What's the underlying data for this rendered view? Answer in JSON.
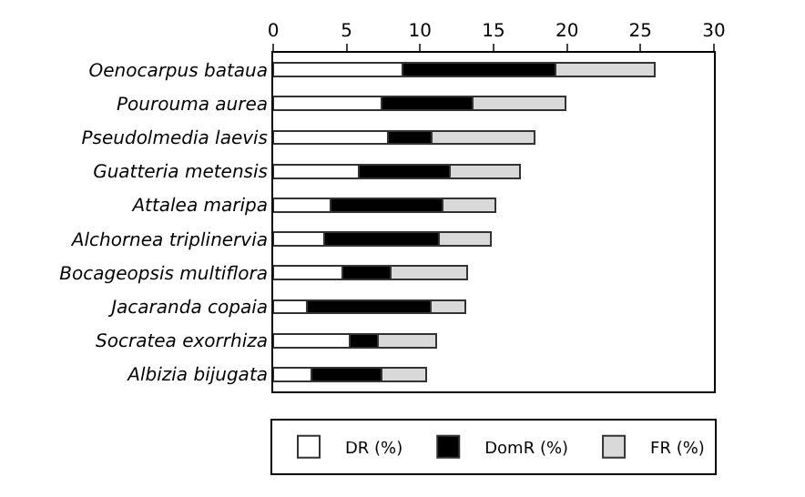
{
  "chart_data": {
    "type": "bar",
    "orientation": "horizontal",
    "stacked": true,
    "categories": [
      "Oenocarpus bataua",
      "Pourouma aurea",
      "Pseudolmedia laevis",
      "Guatteria metensis",
      "Attalea maripa",
      "Alchornea triplinervia",
      "Bocageopsis multiflora",
      "Jacaranda copaia",
      "Socratea exorrhiza",
      "Albizia bijugata"
    ],
    "series": [
      {
        "name": "DR (%)",
        "color": "#ffffff",
        "values": [
          8.8,
          7.4,
          7.8,
          5.8,
          3.9,
          3.5,
          4.7,
          2.3,
          5.2,
          2.6
        ]
      },
      {
        "name": "DomR (%)",
        "color": "#000000",
        "values": [
          10.4,
          6.2,
          3.0,
          6.2,
          7.6,
          7.8,
          3.3,
          8.4,
          1.9,
          4.8
        ]
      },
      {
        "name": "FR (%)",
        "color": "#d9d9d9",
        "values": [
          6.8,
          6.3,
          7.0,
          4.8,
          3.6,
          3.5,
          5.2,
          2.4,
          4.0,
          3.0
        ]
      }
    ],
    "xlim": [
      0,
      30
    ],
    "xticks": [
      0,
      5,
      10,
      15,
      20,
      25,
      30
    ],
    "legend": "bottom"
  }
}
